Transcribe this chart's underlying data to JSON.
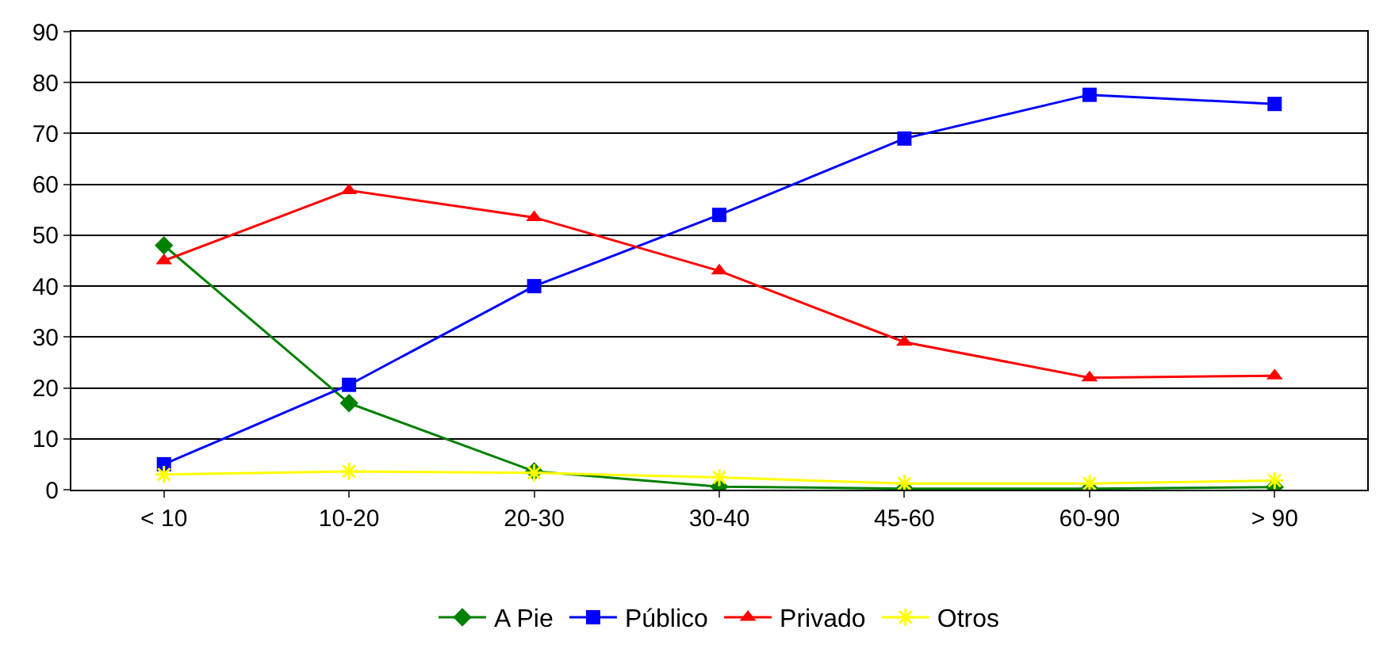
{
  "chart_data": {
    "type": "line",
    "categories": [
      "< 10",
      "10-20",
      "20-30",
      "30-40",
      "45-60",
      "60-90",
      "> 90"
    ],
    "series": [
      {
        "name": "A Pie",
        "color": "#008000",
        "marker": "diamond",
        "values": [
          48,
          17,
          3.6,
          0.6,
          0.2,
          0.2,
          0.5
        ]
      },
      {
        "name": "Público",
        "color": "#0000ff",
        "marker": "square",
        "values": [
          5,
          20.6,
          40,
          54,
          69,
          77.6,
          75.8
        ]
      },
      {
        "name": "Privado",
        "color": "#ff0000",
        "marker": "triangle",
        "values": [
          45,
          58.8,
          53.5,
          43,
          29,
          22,
          22.4
        ]
      },
      {
        "name": "Otros",
        "color": "#ffff00",
        "marker": "cross",
        "values": [
          3,
          3.6,
          3.3,
          2.4,
          1.2,
          1.2,
          1.8
        ]
      }
    ],
    "ylim": [
      0,
      90
    ],
    "yticks": [
      0,
      10,
      20,
      30,
      40,
      50,
      60,
      70,
      80,
      90
    ],
    "grid": "y",
    "legend": "bottom",
    "line_style": "solid"
  }
}
